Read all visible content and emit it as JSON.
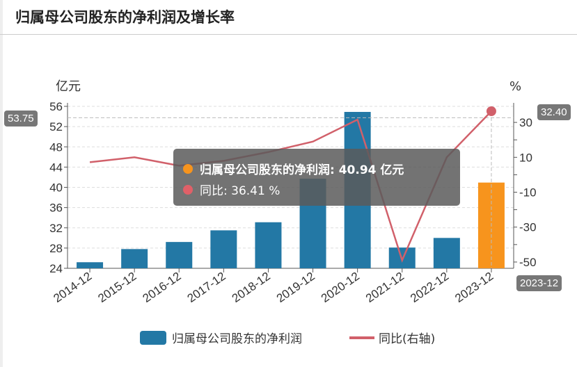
{
  "header": {
    "title": "归属母公司股东的净利润及增长率"
  },
  "chart_data": {
    "type": "bar",
    "title": "归属母公司股东的净利润及增长率",
    "categories": [
      "2014-12",
      "2015-12",
      "2016-12",
      "2017-12",
      "2018-12",
      "2019-12",
      "2020-12",
      "2021-12",
      "2022-12",
      "2023-12"
    ],
    "series": [
      {
        "name": "归属母公司股东的净利润",
        "type": "bar",
        "axis": "left",
        "unit": "亿元",
        "values": [
          25.2,
          27.8,
          29.2,
          31.5,
          33.1,
          41.7,
          54.9,
          28.1,
          30.0,
          40.94
        ],
        "color": "#2378a5",
        "highlight_color": "#f7941d"
      },
      {
        "name": "同比(右轴)",
        "type": "line",
        "axis": "right",
        "unit": "%",
        "values": [
          7.2,
          10.0,
          5.2,
          8.0,
          13.0,
          19.0,
          31.6,
          -49.0,
          10.0,
          36.41
        ],
        "color": "#d1606a"
      }
    ],
    "left_axis": {
      "label": "亿元",
      "range": [
        24,
        56
      ],
      "ticks": [
        24,
        28,
        32,
        36,
        40,
        44,
        48,
        52,
        56
      ]
    },
    "right_axis": {
      "label": "%",
      "range": [
        -53.6,
        39.2
      ],
      "ticks": [
        -50,
        -30,
        -10,
        10,
        30
      ]
    },
    "grid": true,
    "legend_placement": "bottom",
    "legend": [
      "归属母公司股东的净利润",
      "同比(右轴)"
    ],
    "crosshair": {
      "left_value": "53.75",
      "right_value": "32.40",
      "category": "2023-12"
    },
    "tooltip": {
      "bar_label": "归属母公司股东的净利润: 40.94  亿元",
      "line_label": "同比: 36.41  %",
      "bar_dot_color": "#f7941d",
      "line_dot_color": "#e06068"
    }
  }
}
